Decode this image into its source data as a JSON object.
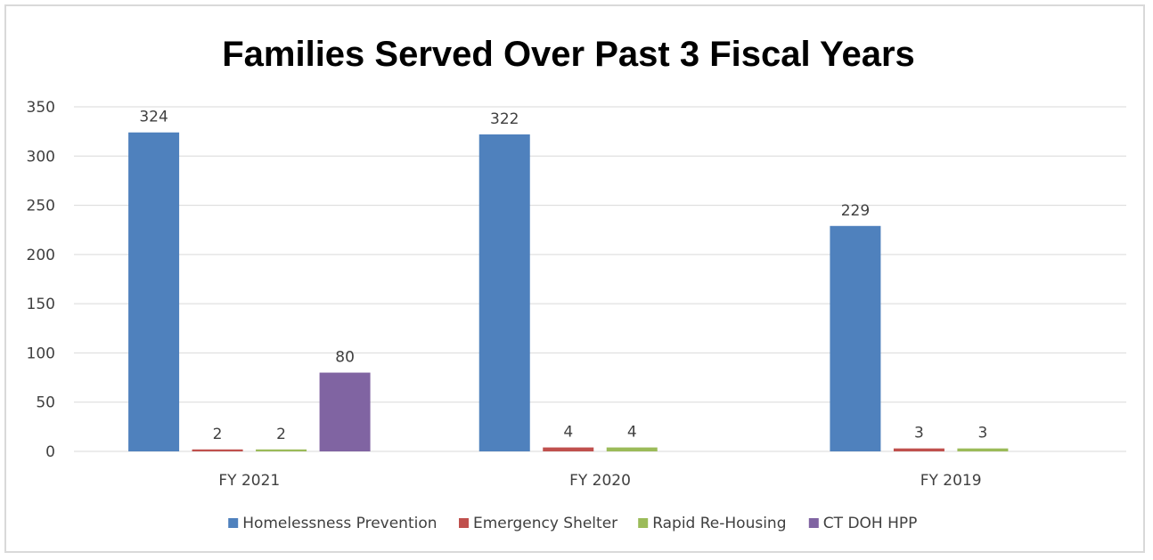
{
  "chart_data": {
    "type": "bar",
    "title": "Families Served Over Past 3 Fiscal Years",
    "categories": [
      "FY 2021",
      "FY 2020",
      "FY 2019"
    ],
    "series": [
      {
        "name": "Homelessness Prevention",
        "color": "#4f81bd",
        "values": [
          324,
          322,
          229
        ]
      },
      {
        "name": "Emergency Shelter",
        "color": "#c0504d",
        "values": [
          2,
          4,
          3
        ]
      },
      {
        "name": "Rapid Re-Housing",
        "color": "#9bbb59",
        "values": [
          2,
          4,
          3
        ]
      },
      {
        "name": "CT DOH HPP",
        "color": "#8064a2",
        "values": [
          80,
          null,
          null
        ]
      }
    ],
    "ylim": [
      0,
      350
    ],
    "yticks": [
      0,
      50,
      100,
      150,
      200,
      250,
      300,
      350
    ],
    "grid": true,
    "legend_position": "bottom"
  }
}
